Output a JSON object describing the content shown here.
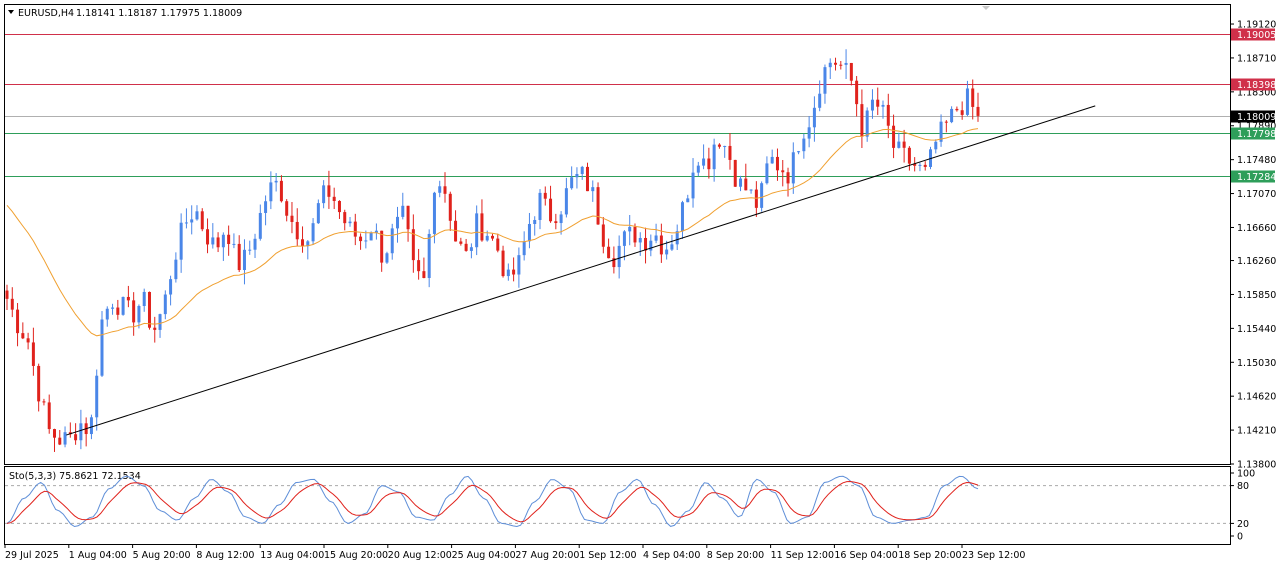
{
  "header": {
    "symbol": "EURUSD,H4",
    "ohlc": "1.18141 1.18187 1.17975 1.18009"
  },
  "oscillator": {
    "title": "Sto(5,3,3) 75.8621 72.1534"
  },
  "colors": {
    "bull": "#4a86e8",
    "bear": "#e0221c",
    "ma": "#f0a030",
    "trend": "#000000",
    "resistance": "#d0304a",
    "support": "#2e9e5a",
    "current": "#b0b0b0",
    "sto_main": "#5f8fd8",
    "sto_signal": "#e0221c"
  },
  "chart_data": [
    {
      "type": "candlestick",
      "title": "",
      "ylim": [
        1.138,
        1.1935
      ],
      "y_ticks": [
        "1.19120",
        "1.18710",
        "1.18300",
        "1.17890",
        "1.17480",
        "1.17070",
        "1.16660",
        "1.16260",
        "1.15850",
        "1.15440",
        "1.15030",
        "1.14620",
        "1.14210",
        "1.13800"
      ],
      "x_ticks": [
        "29 Jul 2025",
        "1 Aug 04:00",
        "5 Aug 20:00",
        "8 Aug 12:00",
        "13 Aug 04:00",
        "15 Aug 20:00",
        "20 Aug 12:00",
        "25 Aug 04:00",
        "27 Aug 20:00",
        "1 Sep 12:00",
        "4 Sep 04:00",
        "8 Sep 20:00",
        "11 Sep 12:00",
        "16 Sep 04:00",
        "18 Sep 20:00",
        "23 Sep 12:00"
      ],
      "close_path": [
        1.158,
        1.155,
        1.153,
        1.147,
        1.142,
        1.141,
        1.141,
        1.143,
        1.142,
        1.155,
        1.158,
        1.157,
        1.156,
        1.158,
        1.154,
        1.157,
        1.163,
        1.167,
        1.169,
        1.166,
        1.164,
        1.167,
        1.162,
        1.163,
        1.167,
        1.171,
        1.172,
        1.168,
        1.166,
        1.165,
        1.17,
        1.171,
        1.168,
        1.166,
        1.165,
        1.167,
        1.163,
        1.166,
        1.168,
        1.161,
        1.16,
        1.173,
        1.171,
        1.165,
        1.163,
        1.167,
        1.166,
        1.164,
        1.16,
        1.162,
        1.167,
        1.17,
        1.168,
        1.169,
        1.172,
        1.173,
        1.171,
        1.166,
        1.163,
        1.165,
        1.166,
        1.165,
        1.166,
        1.164,
        1.166,
        1.17,
        1.176,
        1.174,
        1.178,
        1.176,
        1.172,
        1.171,
        1.169,
        1.175,
        1.174,
        1.173,
        1.178,
        1.18,
        1.185,
        1.187,
        1.186,
        1.184,
        1.178,
        1.182,
        1.18,
        1.176,
        1.175,
        1.174,
        1.173,
        1.177,
        1.179,
        1.181,
        1.182,
        1.18
      ],
      "moving_average": {
        "start": 1.17,
        "end": 1.1786
      },
      "levels": [
        {
          "label": "1.19005",
          "value": 1.19005,
          "kind": "resistance"
        },
        {
          "label": "1.18398",
          "value": 1.18398,
          "kind": "resistance"
        },
        {
          "label": "1.18009",
          "value": 1.18009,
          "kind": "current"
        },
        {
          "label": "1.17798",
          "value": 1.17798,
          "kind": "support"
        },
        {
          "label": "1.17284",
          "value": 1.17284,
          "kind": "support"
        }
      ],
      "trendline": {
        "from": [
          0.05,
          1.1415
        ],
        "to": [
          0.89,
          1.1813
        ]
      }
    },
    {
      "type": "line",
      "title": "Sto(5,3,3) 75.8621 72.1534",
      "ylim": [
        0,
        100
      ],
      "y_ticks": [
        "100",
        "80",
        "20",
        "0"
      ],
      "levels": [
        80,
        20
      ],
      "main_cycles": [
        20,
        60,
        85,
        40,
        15,
        30,
        75,
        95,
        80,
        40,
        25,
        60,
        90,
        70,
        30,
        20,
        50,
        85,
        90,
        55,
        20,
        35,
        80,
        70,
        30,
        25,
        65,
        95,
        60,
        20,
        15,
        55,
        90,
        75,
        25,
        20,
        70,
        90,
        50,
        15,
        40,
        85,
        60,
        30,
        90,
        70,
        20,
        30,
        85,
        95,
        80,
        30,
        20,
        25,
        30,
        80,
        95,
        75
      ],
      "signal_lag": 0.75
    }
  ]
}
